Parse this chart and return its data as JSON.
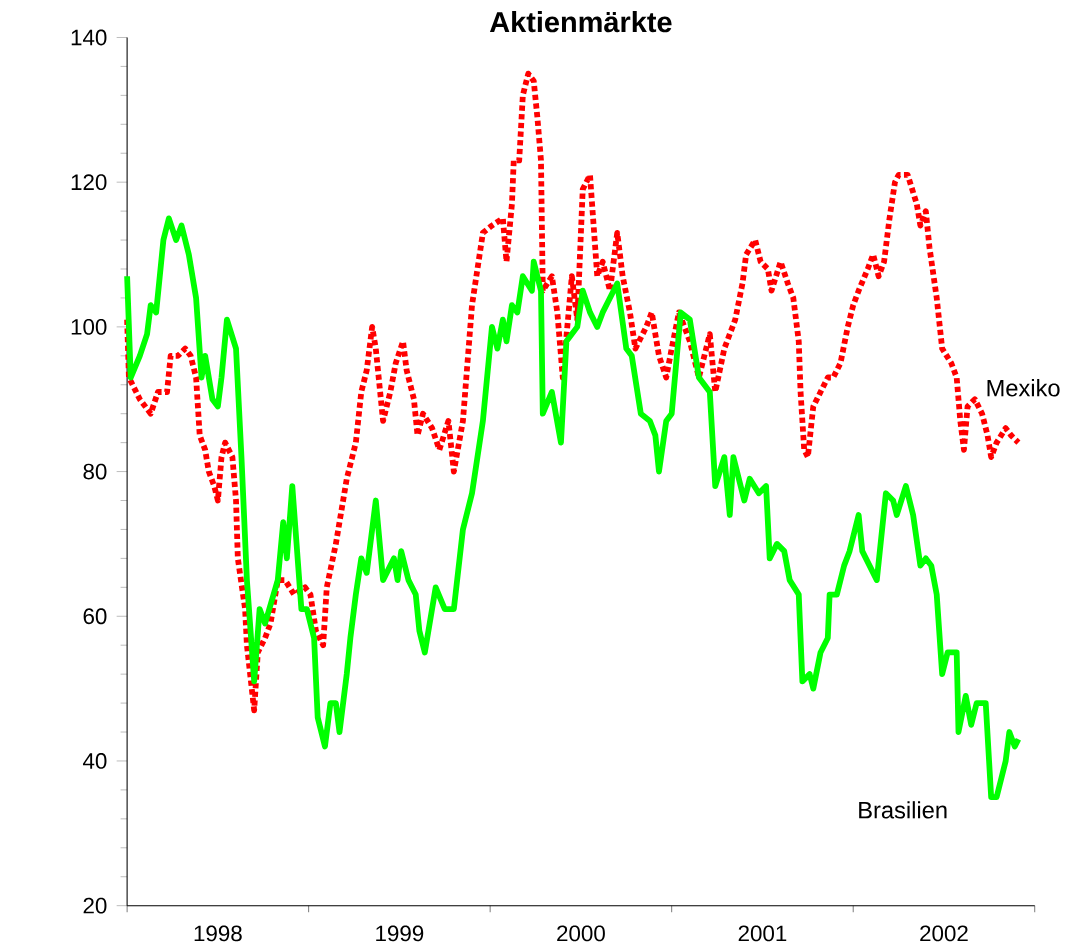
{
  "chart_data": {
    "type": "line",
    "title": "Aktienmärkte",
    "xlim": [
      1998,
      2003
    ],
    "ylim": [
      20,
      140
    ],
    "xticks": [
      {
        "value": 1998,
        "label": null
      },
      {
        "value": 1998.5,
        "label": "1998"
      },
      {
        "value": 1999,
        "label": null
      },
      {
        "value": 1999.5,
        "label": "1999"
      },
      {
        "value": 2000,
        "label": null
      },
      {
        "value": 2000.5,
        "label": "2000"
      },
      {
        "value": 2001,
        "label": null
      },
      {
        "value": 2001.5,
        "label": "2001"
      },
      {
        "value": 2002,
        "label": null
      },
      {
        "value": 2002.5,
        "label": "2002"
      },
      {
        "value": 2003,
        "label": null
      }
    ],
    "yticks": [
      20,
      40,
      60,
      80,
      100,
      120,
      140
    ],
    "grid": false,
    "legend": false,
    "marker": "none",
    "series": [
      {
        "name": "Mexiko",
        "color": "#ff0000",
        "line_style": "dotted",
        "x": [
          1998.0,
          1998.01,
          1998.07,
          1998.1,
          1998.13,
          1998.17,
          1998.22,
          1998.24,
          1998.28,
          1998.32,
          1998.35,
          1998.38,
          1998.4,
          1998.43,
          1998.45,
          1998.48,
          1998.5,
          1998.52,
          1998.54,
          1998.58,
          1998.6,
          1998.61,
          1998.65,
          1998.66,
          1998.7,
          1998.72,
          1998.76,
          1998.79,
          1998.83,
          1998.87,
          1998.92,
          1998.98,
          1999.01,
          1999.04,
          1999.08,
          1999.1,
          1999.15,
          1999.21,
          1999.26,
          1999.29,
          1999.32,
          1999.35,
          1999.37,
          1999.41,
          1999.45,
          1999.48,
          1999.52,
          1999.54,
          1999.58,
          1999.6,
          1999.63,
          1999.68,
          1999.72,
          1999.77,
          1999.8,
          1999.85,
          1999.9,
          1999.96,
          2000.01,
          2000.07,
          2000.09,
          2000.12,
          2000.13,
          2000.16,
          2000.18,
          2000.21,
          2000.24,
          2000.26,
          2000.28,
          2000.29,
          2000.34,
          2000.37,
          2000.4,
          2000.45,
          2000.48,
          2000.51,
          2000.55,
          2000.59,
          2000.62,
          2000.66,
          2000.7,
          2000.73,
          2000.77,
          2000.8,
          2000.86,
          2000.89,
          2000.93,
          2000.97,
          2001.0,
          2001.04,
          2001.1,
          2001.15,
          2001.21,
          2001.24,
          2001.29,
          2001.35,
          2001.39,
          2001.41,
          2001.46,
          2001.49,
          2001.53,
          2001.55,
          2001.6,
          2001.64,
          2001.67,
          2001.7,
          2001.71,
          2001.73,
          2001.75,
          2001.78,
          2001.82,
          2001.86,
          2001.89,
          2001.93,
          2001.97,
          2002.0,
          2002.03,
          2002.08,
          2002.11,
          2002.14,
          2002.17,
          2002.2,
          2002.23,
          2002.25,
          2002.3,
          2002.35,
          2002.37,
          2002.4,
          2002.42,
          2002.46,
          2002.49,
          2002.54,
          2002.57,
          2002.59,
          2002.61,
          2002.63,
          2002.67,
          2002.71,
          2002.74,
          2002.76,
          2002.79,
          2002.84,
          2002.87,
          2002.91
        ],
        "values": [
          101,
          93,
          90,
          89,
          88,
          91,
          91,
          96,
          96,
          97,
          96,
          93,
          85,
          83,
          80,
          78,
          76,
          82,
          84,
          82,
          76,
          68,
          61,
          56,
          47,
          55,
          57,
          59,
          65,
          65,
          63,
          64,
          63,
          58,
          56,
          64,
          70,
          79,
          84,
          91,
          94,
          100,
          97,
          87,
          91,
          95,
          98,
          94,
          90,
          85,
          88,
          86,
          83,
          87,
          80,
          87,
          103,
          113,
          114,
          115,
          109,
          117,
          123,
          123,
          132,
          135,
          134,
          129,
          123,
          105,
          107,
          102,
          93,
          107,
          101,
          119,
          121,
          107,
          109,
          105,
          113,
          107,
          102,
          97,
          100,
          102,
          96,
          93,
          97,
          102,
          98,
          93,
          99,
          91,
          97,
          101,
          106,
          110,
          112,
          109,
          108,
          105,
          109,
          106,
          104,
          98,
          91,
          83,
          82,
          89,
          91,
          93,
          93,
          95,
          100,
          103,
          105,
          108,
          110,
          107,
          109,
          115,
          120,
          121,
          121,
          117,
          114,
          116,
          111,
          104,
          97,
          95,
          93,
          87,
          83,
          89,
          90,
          88,
          85,
          82,
          84,
          86,
          85,
          84
        ]
      },
      {
        "name": "Brasilien",
        "color": "#00ff00",
        "line_style": "solid",
        "x": [
          1998.0,
          1998.02,
          1998.07,
          1998.11,
          1998.13,
          1998.16,
          1998.2,
          1998.23,
          1998.27,
          1998.3,
          1998.34,
          1998.38,
          1998.41,
          1998.43,
          1998.47,
          1998.5,
          1998.52,
          1998.55,
          1998.6,
          1998.63,
          1998.66,
          1998.7,
          1998.73,
          1998.76,
          1998.83,
          1998.86,
          1998.88,
          1998.91,
          1998.96,
          1998.99,
          1999.03,
          1999.05,
          1999.09,
          1999.12,
          1999.15,
          1999.17,
          1999.21,
          1999.23,
          1999.26,
          1999.29,
          1999.32,
          1999.37,
          1999.41,
          1999.47,
          1999.49,
          1999.51,
          1999.55,
          1999.59,
          1999.61,
          1999.64,
          1999.7,
          1999.75,
          1999.8,
          1999.85,
          1999.9,
          1999.96,
          2000.01,
          2000.04,
          2000.07,
          2000.09,
          2000.12,
          2000.15,
          2000.18,
          2000.23,
          2000.24,
          2000.28,
          2000.29,
          2000.34,
          2000.39,
          2000.42,
          2000.48,
          2000.51,
          2000.55,
          2000.59,
          2000.62,
          2000.7,
          2000.75,
          2000.78,
          2000.83,
          2000.88,
          2000.91,
          2000.93,
          2000.97,
          2001.0,
          2001.05,
          2001.1,
          2001.15,
          2001.21,
          2001.24,
          2001.29,
          2001.32,
          2001.34,
          2001.4,
          2001.43,
          2001.48,
          2001.52,
          2001.54,
          2001.58,
          2001.62,
          2001.65,
          2001.7,
          2001.72,
          2001.76,
          2001.78,
          2001.82,
          2001.86,
          2001.87,
          2001.91,
          2001.95,
          2001.98,
          2002.03,
          2002.05,
          2002.09,
          2002.13,
          2002.18,
          2002.22,
          2002.24,
          2002.29,
          2002.33,
          2002.37,
          2002.4,
          2002.43,
          2002.46,
          2002.49,
          2002.52,
          2002.57,
          2002.58,
          2002.62,
          2002.65,
          2002.68,
          2002.73,
          2002.76,
          2002.79,
          2002.84,
          2002.86,
          2002.89,
          2002.91
        ],
        "values": [
          107,
          93,
          96,
          99,
          103,
          102,
          112,
          115,
          112,
          114,
          110,
          104,
          93,
          96,
          90,
          89,
          93,
          101,
          97,
          82,
          65,
          51,
          61,
          59,
          65,
          73,
          68,
          78,
          61,
          61,
          57,
          46,
          42,
          48,
          48,
          44,
          52,
          57,
          63,
          68,
          66,
          76,
          65,
          68,
          65,
          69,
          65,
          63,
          58,
          55,
          64,
          61,
          61,
          72,
          77,
          87,
          100,
          97,
          101,
          98,
          103,
          102,
          107,
          105,
          109,
          105,
          88,
          91,
          84,
          98,
          100,
          105,
          102,
          100,
          102,
          106,
          97,
          96,
          88,
          87,
          85,
          80,
          87,
          88,
          102,
          101,
          93,
          91,
          78,
          82,
          74,
          82,
          76,
          79,
          77,
          78,
          68,
          70,
          69,
          65,
          63,
          51,
          52,
          50,
          55,
          57,
          63,
          63,
          67,
          69,
          74,
          69,
          67,
          65,
          77,
          76,
          74,
          78,
          74,
          67,
          68,
          67,
          63,
          52,
          55,
          55,
          44,
          49,
          45,
          48,
          48,
          35,
          35,
          40,
          44,
          42,
          43
        ]
      }
    ]
  }
}
